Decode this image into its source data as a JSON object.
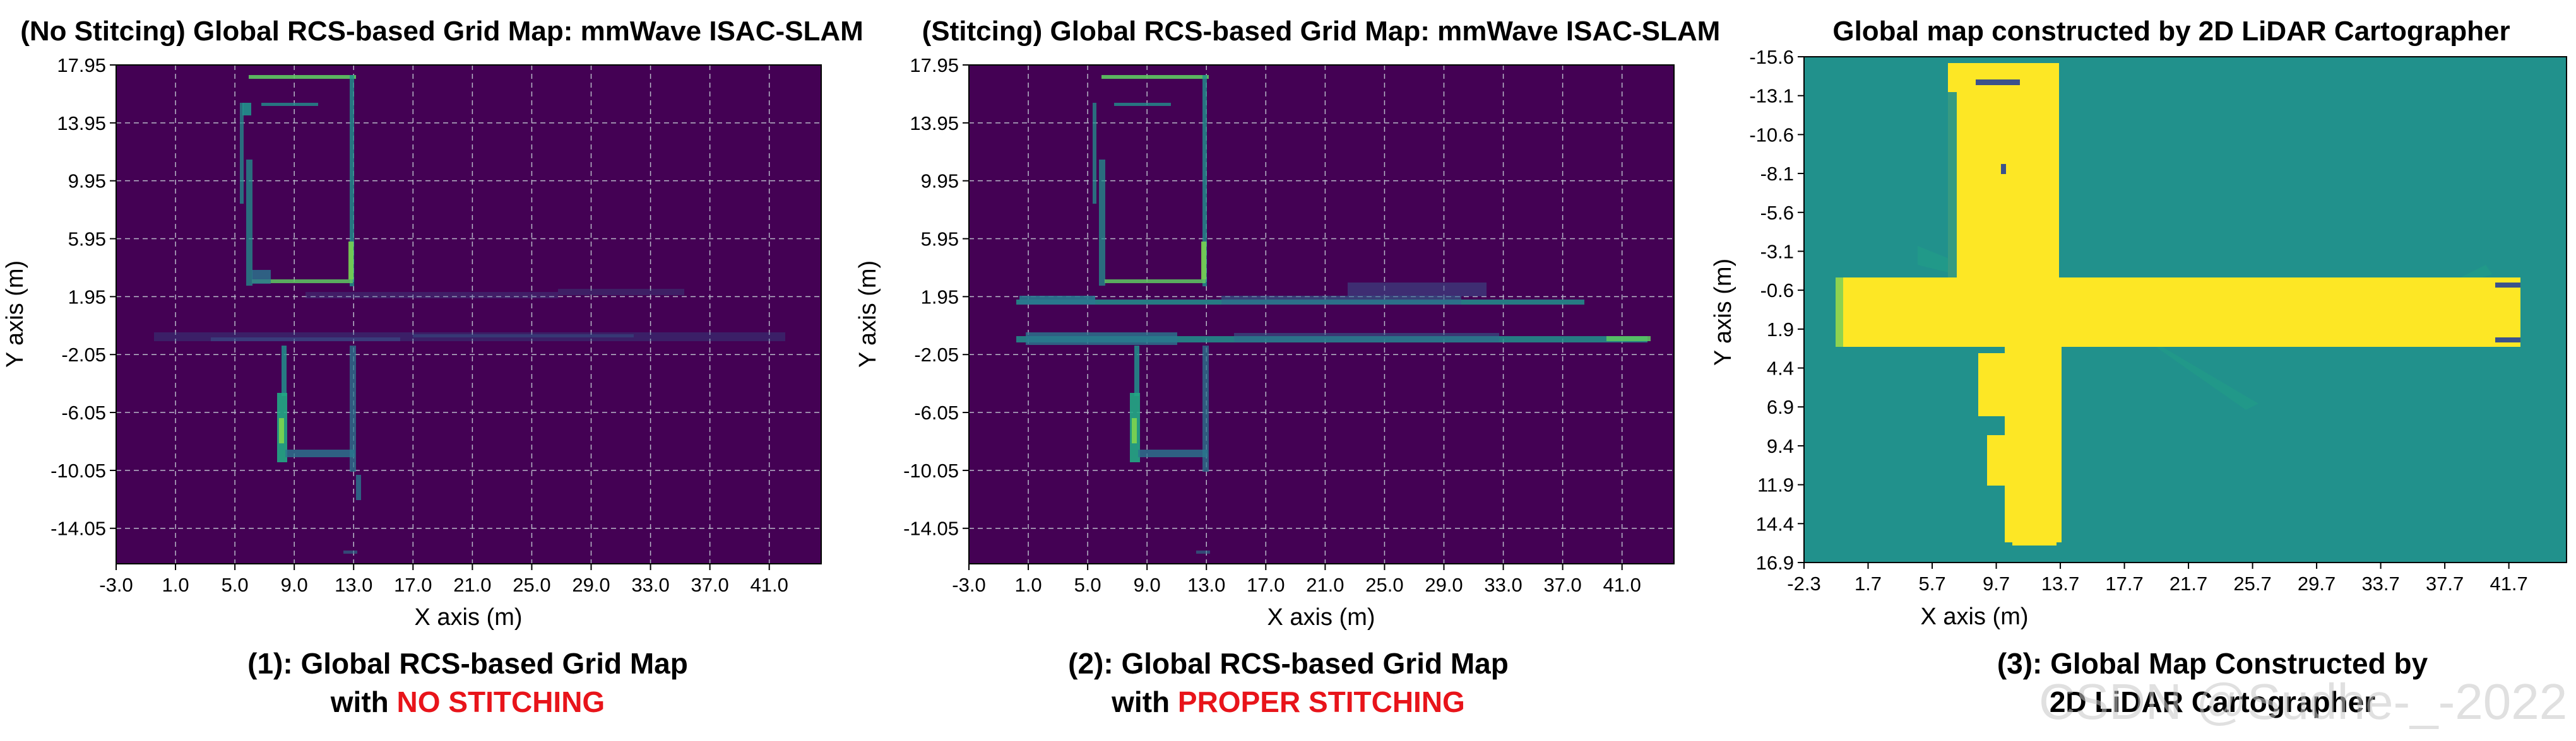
{
  "colors": {
    "viridis_dark": "#440154",
    "viridis_teal": "#21918c",
    "viridis_green": "#5ec962",
    "viridis_yellow": "#fde725",
    "caption_red": "#e8141a",
    "grid": "#b8b8c8"
  },
  "chart_data": [
    {
      "type": "heatmap",
      "title": "(No Stitcing) Global RCS-based Grid Map: mmWave ISAC-SLAM",
      "xlabel": "X axis (m)",
      "ylabel": "Y axis (m)",
      "x_ticks": [
        "-3.0",
        "1.0",
        "5.0",
        "9.0",
        "13.0",
        "17.0",
        "21.0",
        "25.0",
        "29.0",
        "33.0",
        "37.0",
        "41.0"
      ],
      "y_ticks": [
        "17.95",
        "13.95",
        "9.95",
        "5.95",
        "1.95",
        "-2.05",
        "-6.05",
        "-10.05",
        "-14.05"
      ],
      "xlim": [
        -3.0,
        44.5
      ],
      "ylim": [
        -16.5,
        17.95
      ],
      "grid": true,
      "caption_line1": "(1): Global RCS-based Grid Map",
      "caption_line2_prefix": "with ",
      "caption_line2_highlight": "NO STITCHING"
    },
    {
      "type": "heatmap",
      "title": "(Stitcing) Global RCS-based Grid Map: mmWave ISAC-SLAM",
      "xlabel": "X axis (m)",
      "ylabel": "Y axis (m)",
      "x_ticks": [
        "-3.0",
        "1.0",
        "5.0",
        "9.0",
        "13.0",
        "17.0",
        "21.0",
        "25.0",
        "29.0",
        "33.0",
        "37.0",
        "41.0"
      ],
      "y_ticks": [
        "17.95",
        "13.95",
        "9.95",
        "5.95",
        "1.95",
        "-2.05",
        "-6.05",
        "-10.05",
        "-14.05"
      ],
      "xlim": [
        -3.0,
        44.5
      ],
      "ylim": [
        -16.5,
        17.95
      ],
      "grid": true,
      "caption_line1": "(2): Global RCS-based Grid Map",
      "caption_line2_prefix": "with ",
      "caption_line2_highlight": "PROPER STITCHING"
    },
    {
      "type": "heatmap",
      "title": "Global map constructed by 2D LiDAR Cartographer",
      "xlabel": "X axis (m)",
      "ylabel": "Y axis (m)",
      "x_ticks": [
        "-2.3",
        "1.7",
        "5.7",
        "9.7",
        "13.7",
        "17.7",
        "21.7",
        "25.7",
        "29.7",
        "33.7",
        "37.7",
        "41.7"
      ],
      "y_ticks": [
        "-15.6",
        "-13.1",
        "-10.6",
        "-8.1",
        "-5.6",
        "-3.1",
        "-0.6",
        "1.9",
        "4.4",
        "6.9",
        "9.4",
        "11.9",
        "14.4",
        "16.9"
      ],
      "xlim": [
        -2.3,
        45.3
      ],
      "ylim": [
        16.9,
        -15.6
      ],
      "grid": false,
      "caption_line1": "(3): Global Map Constructed by",
      "caption_line2": "2D LiDAR Cartographer"
    }
  ],
  "watermark": "CSDN @Sudhe-_-2022"
}
